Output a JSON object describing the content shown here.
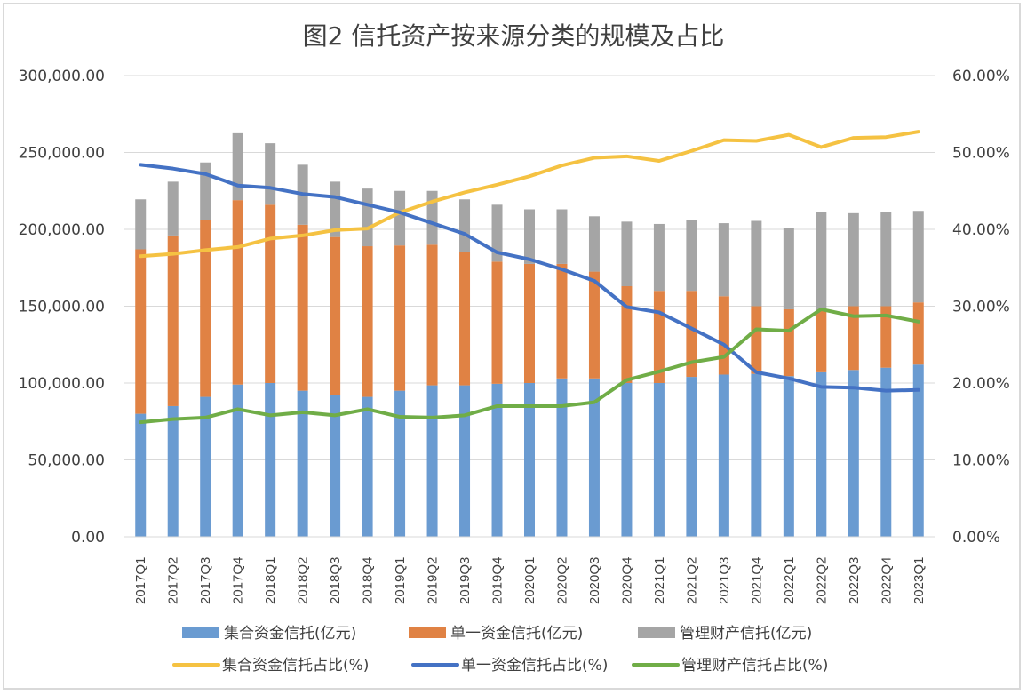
{
  "chart_data": {
    "type": "bar",
    "title": "图2  信托资产按来源分类的规模及占比",
    "xlabel": "",
    "ylabel": "",
    "ylim": [
      0,
      300000
    ],
    "y2lim": [
      0,
      0.6
    ],
    "grid": true,
    "legend_position": "bottom",
    "y_ticks": [
      "0.00",
      "50,000.00",
      "100,000.00",
      "150,000.00",
      "200,000.00",
      "250,000.00",
      "300,000.00"
    ],
    "y_tick_values": [
      0,
      50000,
      100000,
      150000,
      200000,
      250000,
      300000
    ],
    "y2_ticks": [
      "0.00%",
      "10.00%",
      "20.00%",
      "30.00%",
      "40.00%",
      "50.00%",
      "60.00%"
    ],
    "y2_tick_values": [
      0,
      0.1,
      0.2,
      0.3,
      0.4,
      0.5,
      0.6
    ],
    "categories": [
      "2017Q1",
      "2017Q2",
      "2017Q3",
      "2017Q4",
      "2018Q1",
      "2018Q2",
      "2018Q3",
      "2018Q4",
      "2019Q1",
      "2019Q2",
      "2019Q3",
      "2019Q4",
      "2020Q1",
      "2020Q2",
      "2020Q3",
      "2020Q4",
      "2021Q1",
      "2021Q2",
      "2021Q3",
      "2021Q4",
      "2022Q1",
      "2022Q2",
      "2022Q3",
      "2022Q4",
      "2023Q1"
    ],
    "series": [
      {
        "name": "集合资金信托(亿元)",
        "type": "bar",
        "stack": "total",
        "axis": "left",
        "color": "#6a9bd1",
        "values": [
          80000,
          85000,
          91000,
          99000,
          100000,
          95000,
          92000,
          91000,
          95000,
          98500,
          98500,
          99500,
          100000,
          103000,
          103000,
          100000,
          100000,
          104000,
          105500,
          106000,
          104500,
          107000,
          108500,
          110000,
          112000
        ]
      },
      {
        "name": "单一资金信托(亿元)",
        "type": "bar",
        "stack": "total",
        "axis": "left",
        "color": "#e08244",
        "values": [
          107000,
          111000,
          115000,
          120000,
          116000,
          108000,
          103000,
          98000,
          94500,
          91500,
          86500,
          79500,
          77500,
          74500,
          69500,
          63000,
          60000,
          56000,
          51000,
          44000,
          43500,
          40000,
          41500,
          40000,
          40500
        ]
      },
      {
        "name": "管理财产信托(亿元)",
        "type": "bar",
        "stack": "total",
        "axis": "left",
        "color": "#a5a5a5",
        "values": [
          32500,
          35000,
          37500,
          43500,
          40000,
          39000,
          36000,
          37500,
          35500,
          35000,
          34500,
          37000,
          35500,
          35500,
          36000,
          42000,
          43500,
          46000,
          47500,
          55500,
          53000,
          64000,
          60500,
          61000,
          59500
        ]
      },
      {
        "name": "集合资金信托占比(%)",
        "type": "line",
        "axis": "right",
        "color": "#f5c242",
        "values": [
          0.365,
          0.368,
          0.373,
          0.377,
          0.388,
          0.392,
          0.399,
          0.401,
          0.422,
          0.436,
          0.448,
          0.458,
          0.469,
          0.483,
          0.493,
          0.495,
          0.489,
          0.502,
          0.516,
          0.515,
          0.523,
          0.507,
          0.519,
          0.52,
          0.527
        ]
      },
      {
        "name": "单一资金信托占比(%)",
        "type": "line",
        "axis": "right",
        "color": "#4472c4",
        "values": [
          0.484,
          0.479,
          0.472,
          0.457,
          0.454,
          0.446,
          0.442,
          0.432,
          0.422,
          0.408,
          0.394,
          0.37,
          0.361,
          0.348,
          0.333,
          0.299,
          0.292,
          0.271,
          0.25,
          0.214,
          0.206,
          0.195,
          0.194,
          0.19,
          0.191
        ]
      },
      {
        "name": "管理财产信托占比(%)",
        "type": "line",
        "axis": "right",
        "color": "#70ad47",
        "values": [
          0.149,
          0.153,
          0.155,
          0.166,
          0.158,
          0.162,
          0.158,
          0.166,
          0.156,
          0.155,
          0.158,
          0.17,
          0.17,
          0.17,
          0.175,
          0.204,
          0.215,
          0.227,
          0.234,
          0.27,
          0.268,
          0.296,
          0.287,
          0.288,
          0.28
        ]
      }
    ]
  }
}
